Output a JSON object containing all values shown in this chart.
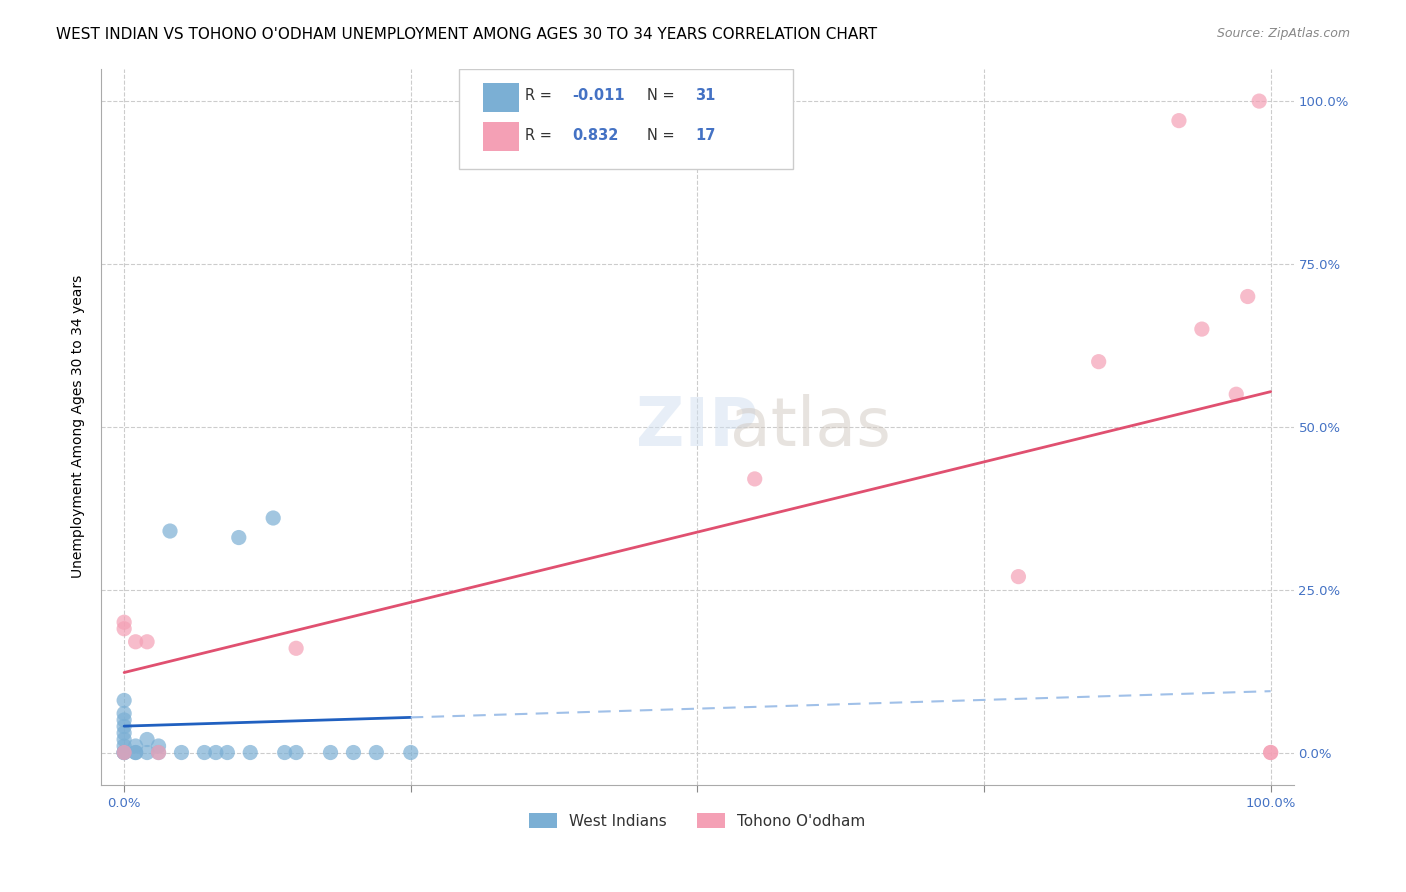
{
  "title": "WEST INDIAN VS TOHONO O'ODHAM UNEMPLOYMENT AMONG AGES 30 TO 34 YEARS CORRELATION CHART",
  "source": "Source: ZipAtlas.com",
  "xlabel": "",
  "ylabel": "Unemployment Among Ages 30 to 34 years",
  "xlim": [
    0,
    1.0
  ],
  "ylim": [
    -0.05,
    1.05
  ],
  "xticks": [
    0.0,
    0.25,
    0.5,
    0.75,
    1.0
  ],
  "yticks": [
    0.0,
    0.25,
    0.5,
    0.75,
    1.0
  ],
  "xticklabels": [
    "0.0%",
    "",
    "",
    "",
    "100.0%"
  ],
  "yticklabels": [
    "",
    "25.0%",
    "50.0%",
    "75.0%",
    "100.0%"
  ],
  "background_color": "#ffffff",
  "grid_color": "#cccccc",
  "watermark": "ZIPatlas",
  "west_indians_x": [
    0.0,
    0.0,
    0.0,
    0.0,
    0.0,
    0.0,
    0.0,
    0.0,
    0.0,
    0.0,
    0.01,
    0.01,
    0.01,
    0.02,
    0.02,
    0.03,
    0.03,
    0.04,
    0.05,
    0.07,
    0.08,
    0.09,
    0.1,
    0.11,
    0.13,
    0.14,
    0.15,
    0.18,
    0.2,
    0.22,
    0.25
  ],
  "west_indians_y": [
    0.0,
    0.0,
    0.0,
    0.01,
    0.02,
    0.03,
    0.04,
    0.05,
    0.06,
    0.08,
    0.0,
    0.0,
    0.01,
    0.0,
    0.02,
    0.0,
    0.01,
    0.34,
    0.0,
    0.0,
    0.0,
    0.0,
    0.33,
    0.0,
    0.36,
    0.0,
    0.0,
    0.0,
    0.0,
    0.0,
    0.0
  ],
  "tohono_x": [
    0.0,
    0.0,
    0.0,
    0.01,
    0.02,
    0.03,
    0.15,
    0.55,
    0.78,
    0.85,
    0.92,
    0.94,
    0.97,
    0.98,
    0.99,
    1.0,
    1.0
  ],
  "tohono_y": [
    0.0,
    0.19,
    0.2,
    0.17,
    0.17,
    0.0,
    0.16,
    0.42,
    0.27,
    0.6,
    0.97,
    0.65,
    0.55,
    0.7,
    1.0,
    0.0,
    0.0
  ],
  "blue_color": "#7bafd4",
  "pink_color": "#f4a0b5",
  "blue_line_color": "#2060c0",
  "pink_line_color": "#e05070",
  "blue_dash_color": "#a0c0e8",
  "legend_R1": "-0.011",
  "legend_N1": "31",
  "legend_R2": "0.832",
  "legend_N2": "17",
  "title_fontsize": 11,
  "source_fontsize": 9,
  "axis_label_fontsize": 10,
  "tick_fontsize": 9.5,
  "legend_fontsize": 10,
  "watermark_fontsize": 48
}
